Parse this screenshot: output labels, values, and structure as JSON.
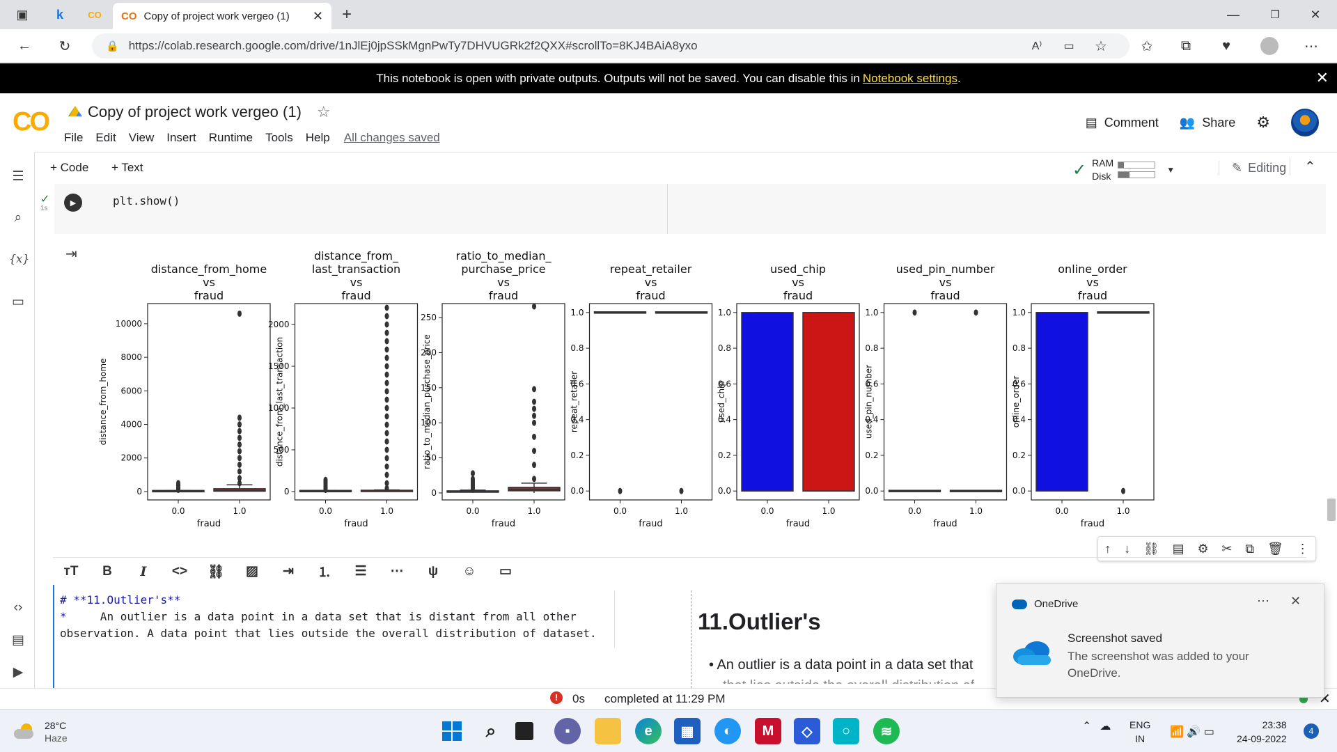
{
  "browser": {
    "active_tab_title": "Copy of project work vergeo (1)",
    "tab_logo": "CO",
    "url": "https://colab.research.google.com/drive/1nJlEj0jpSSkMgnPwTy7DHVUGRk2f2QXX#scrollTo=8KJ4BAiA8yxo",
    "pinned_tab_letter": "k"
  },
  "banner": {
    "text": "This notebook is open with private outputs. Outputs will not be saved. You can disable this in",
    "link": "Notebook settings",
    "suffix": "."
  },
  "colab": {
    "logo": "CO",
    "title": "Copy of project work vergeo (1)",
    "menu": [
      "File",
      "Edit",
      "View",
      "Insert",
      "Runtime",
      "Tools",
      "Help"
    ],
    "saved_status": "All changes saved",
    "comment_label": "Comment",
    "share_label": "Share",
    "add_code": "+ Code",
    "add_text": "+ Text",
    "ram_label": "RAM",
    "disk_label": "Disk",
    "ram_usage": 0.15,
    "disk_usage": 0.3,
    "editing_label": "Editing"
  },
  "code_cell": {
    "code": "plt.show()",
    "status": "✓",
    "exec_time": "1s"
  },
  "chart_data": {
    "type": "boxplot",
    "subplots": [
      {
        "title": [
          "distance_from_home",
          "vs",
          "fraud"
        ],
        "ylabel": "distance_from_home",
        "xlabel": "fraud",
        "categories": [
          "0.0",
          "1.0"
        ],
        "ylim": [
          -500,
          11200
        ],
        "yticks": [
          0,
          2000,
          4000,
          6000,
          8000,
          10000
        ],
        "boxes": [
          {
            "q1": 5,
            "median": 10,
            "q3": 25,
            "whisker_low": 0,
            "whisker_high": 60,
            "fliers": [
              100,
              150,
              200,
              250,
              300,
              350,
              400,
              450,
              500
            ],
            "color": "#1f2ec4"
          },
          {
            "q1": 20,
            "median": 60,
            "q3": 170,
            "whisker_low": 0,
            "whisker_high": 400,
            "fliers": [
              500,
              800,
              1200,
              1600,
              2000,
              2400,
              2800,
              3200,
              3600,
              4000,
              4400,
              10600
            ],
            "color": "#a52020"
          }
        ]
      },
      {
        "title": [
          "distance_from_",
          "last_transaction",
          "vs",
          "fraud"
        ],
        "ylabel": "distance_from_last_transaction",
        "xlabel": "fraud",
        "categories": [
          "0.0",
          "1.0"
        ],
        "ylim": [
          -100,
          2250
        ],
        "yticks": [
          0,
          500,
          1000,
          1500,
          2000
        ],
        "boxes": [
          {
            "q1": 1,
            "median": 3,
            "q3": 6,
            "whisker_low": 0,
            "whisker_high": 15,
            "fliers": [
              20,
              40,
              60,
              80,
              100,
              120,
              140
            ],
            "color": "#1f2ec4"
          },
          {
            "q1": 1,
            "median": 3,
            "q3": 8,
            "whisker_low": 0,
            "whisker_high": 20,
            "fliers": [
              40,
              100,
              200,
              300,
              400,
              500,
              600,
              700,
              800,
              900,
              1000,
              1100,
              1200,
              1300,
              1400,
              1500,
              1600,
              1700,
              1800,
              1900,
              2000,
              2100,
              2200
            ],
            "color": "#a52020"
          }
        ]
      },
      {
        "title": [
          "ratio_to_median_",
          "purchase_price",
          "vs",
          "fraud"
        ],
        "ylabel": "ratio_to_median_purchase_price",
        "xlabel": "fraud",
        "categories": [
          "0.0",
          "1.0"
        ],
        "ylim": [
          -10,
          270
        ],
        "yticks": [
          0,
          50,
          100,
          150,
          200,
          250
        ],
        "boxes": [
          {
            "q1": 0.5,
            "median": 1,
            "q3": 2,
            "whisker_low": 0,
            "whisker_high": 4,
            "fliers": [
              6,
              8,
              10,
              12,
              14,
              16,
              18,
              20,
              28
            ],
            "color": "#1f2ec4"
          },
          {
            "q1": 3,
            "median": 5,
            "q3": 8,
            "whisker_low": 0,
            "whisker_high": 14,
            "fliers": [
              20,
              40,
              60,
              80,
              100,
              110,
              120,
              130,
              148,
              266
            ],
            "color": "#a52020"
          }
        ]
      },
      {
        "title": [
          "repeat_retailer",
          "vs",
          "fraud"
        ],
        "ylabel": "repeat_retailer",
        "xlabel": "fraud",
        "categories": [
          "0.0",
          "1.0"
        ],
        "ylim": [
          -0.05,
          1.05
        ],
        "yticks": [
          0.0,
          0.2,
          0.4,
          0.6,
          0.8,
          1.0
        ],
        "boxes": [
          {
            "q1": 1,
            "median": 1,
            "q3": 1,
            "whisker_low": 1,
            "whisker_high": 1,
            "fliers": [
              0
            ],
            "color": "#1f2ec4"
          },
          {
            "q1": 1,
            "median": 1,
            "q3": 1,
            "whisker_low": 1,
            "whisker_high": 1,
            "fliers": [
              0
            ],
            "color": "#a52020"
          }
        ]
      },
      {
        "title": [
          "used_chip",
          "vs",
          "fraud"
        ],
        "ylabel": "used_chip",
        "xlabel": "fraud",
        "categories": [
          "0.0",
          "1.0"
        ],
        "ylim": [
          -0.05,
          1.05
        ],
        "yticks": [
          0.0,
          0.2,
          0.4,
          0.6,
          0.8,
          1.0
        ],
        "boxes": [
          {
            "q1": 0,
            "median": 0,
            "q3": 1,
            "whisker_low": 0,
            "whisker_high": 1,
            "fliers": [],
            "color": "#1010e0"
          },
          {
            "q1": 0,
            "median": 0,
            "q3": 1,
            "whisker_low": 0,
            "whisker_high": 1,
            "fliers": [],
            "color": "#cc1515"
          }
        ]
      },
      {
        "title": [
          "used_pin_number",
          "vs",
          "fraud"
        ],
        "ylabel": "used_pin_number",
        "xlabel": "fraud",
        "categories": [
          "0.0",
          "1.0"
        ],
        "ylim": [
          -0.05,
          1.05
        ],
        "yticks": [
          0.0,
          0.2,
          0.4,
          0.6,
          0.8,
          1.0
        ],
        "boxes": [
          {
            "q1": 0,
            "median": 0,
            "q3": 0,
            "whisker_low": 0,
            "whisker_high": 0,
            "fliers": [
              1
            ],
            "color": "#1f2ec4"
          },
          {
            "q1": 0,
            "median": 0,
            "q3": 0,
            "whisker_low": 0,
            "whisker_high": 0,
            "fliers": [
              1
            ],
            "color": "#a52020"
          }
        ]
      },
      {
        "title": [
          "online_order",
          "vs",
          "fraud"
        ],
        "ylabel": "online_order",
        "xlabel": "fraud",
        "categories": [
          "0.0",
          "1.0"
        ],
        "ylim": [
          -0.05,
          1.05
        ],
        "yticks": [
          0.0,
          0.2,
          0.4,
          0.6,
          0.8,
          1.0
        ],
        "boxes": [
          {
            "q1": 0,
            "median": 1,
            "q3": 1,
            "whisker_low": 0,
            "whisker_high": 1,
            "fliers": [],
            "color": "#1010e0"
          },
          {
            "q1": 1,
            "median": 1,
            "q3": 1,
            "whisker_low": 1,
            "whisker_high": 1,
            "fliers": [
              0
            ],
            "color": "#a52020"
          }
        ]
      }
    ]
  },
  "markdown_cell": {
    "src_line1_hash": "#",
    "src_line1": " **11.Outlier's**",
    "src_line2_bullet": "*",
    "src_line2": "     An outlier is a data point in a data set that is distant from all other",
    "src_line3": "observation. A data point that lies outside the overall distribution of dataset.",
    "preview_title": "11.Outlier's",
    "preview_bullet": "An outlier is a data point in a data set that",
    "preview_more": "that lies outside the overall distribution of"
  },
  "status": {
    "duration": "0s",
    "completed": "completed at 11:29 PM"
  },
  "toast": {
    "app": "OneDrive",
    "title": "Screenshot saved",
    "body": "The screenshot was added to your OneDrive."
  },
  "taskbar": {
    "temperature": "28°C",
    "weather": "Haze",
    "lang1": "ENG",
    "lang2": "IN",
    "time": "23:38",
    "date": "24-09-2022",
    "notifications": "4"
  }
}
